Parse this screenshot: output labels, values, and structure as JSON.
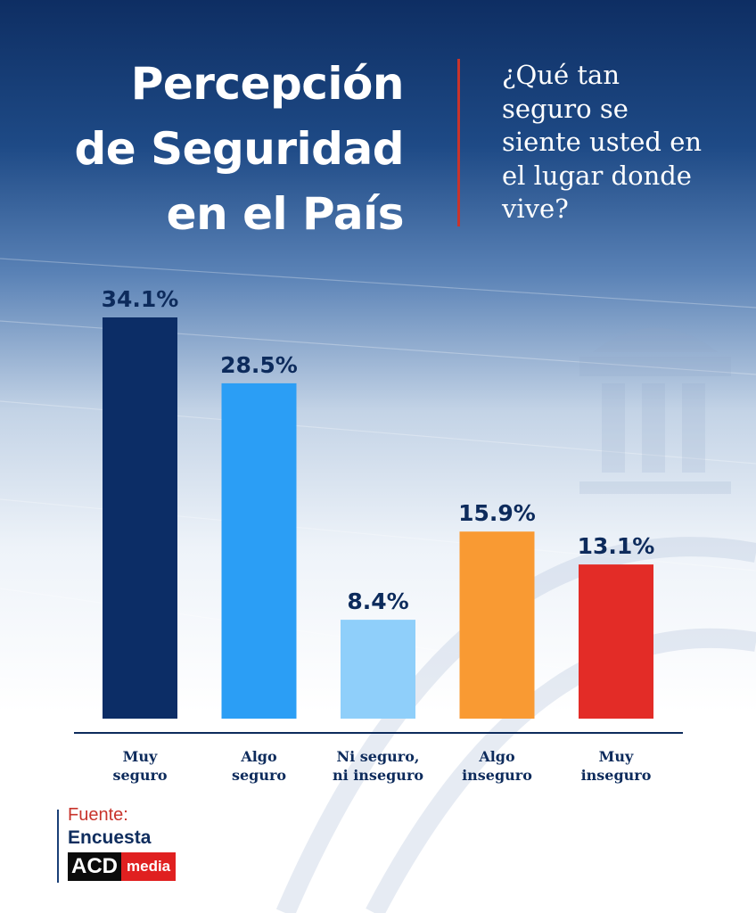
{
  "header": {
    "title_lines": [
      "Percepción",
      "de Seguridad",
      "en el País"
    ],
    "question_lines": [
      "¿Qué tan",
      "seguro se",
      "siente usted en",
      "el lugar donde",
      "vive?"
    ]
  },
  "chart_data": {
    "type": "bar",
    "categories": [
      [
        "Muy",
        "seguro"
      ],
      [
        "Algo",
        "seguro"
      ],
      [
        "Ni seguro,",
        "ni inseguro"
      ],
      [
        "Algo",
        "inseguro"
      ],
      [
        "Muy",
        "inseguro"
      ]
    ],
    "values": [
      34.1,
      28.5,
      8.4,
      15.9,
      13.1
    ],
    "labels": [
      "34.1%",
      "28.5%",
      "8.4%",
      "15.9%",
      "13.1%"
    ],
    "colors": [
      "#0c2d66",
      "#2b9ef5",
      "#8fcffa",
      "#f99a33",
      "#e32c27"
    ],
    "ylim": [
      0,
      34.1
    ],
    "grid": false
  },
  "source": {
    "label": "Fuente:",
    "name": "Encuesta",
    "logo_part1": "ACD",
    "logo_part2": "media"
  }
}
